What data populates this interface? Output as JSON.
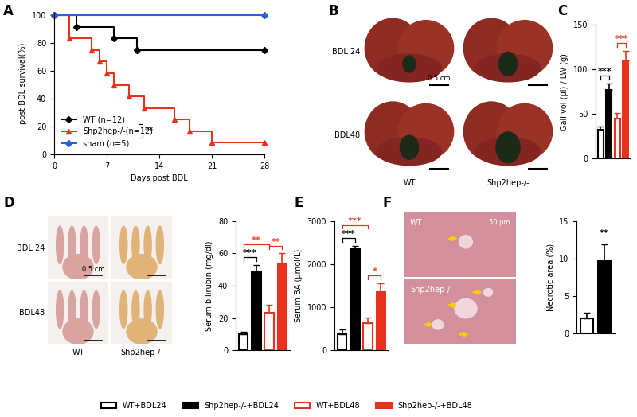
{
  "chart_data": [
    {
      "panel": "A",
      "type": "line",
      "xlabel": "Days post BDL",
      "ylabel": "post BDL survival(%)",
      "xlim": [
        0,
        28
      ],
      "xticks": [
        0,
        7,
        14,
        21,
        28
      ],
      "ylim": [
        0,
        102
      ],
      "yticks": [
        0,
        20,
        40,
        60,
        80,
        100
      ],
      "legend": "lower left",
      "annotations": [
        {
          "text": "**",
          "between": [
            0,
            1
          ]
        }
      ],
      "series": [
        {
          "name": "WT (n=12)",
          "color": "#000000",
          "marker": "D",
          "x": [
            0,
            3,
            8,
            11,
            28
          ],
          "values": [
            100,
            91.7,
            83.3,
            75,
            75
          ]
        },
        {
          "name": "Shp2hep-/-(n=12)",
          "color": "#e8321e",
          "marker": "^",
          "x": [
            0,
            2,
            5,
            6,
            7,
            8,
            10,
            12,
            16,
            18,
            21,
            28
          ],
          "values": [
            100,
            83.3,
            75,
            66.7,
            58.3,
            50,
            41.7,
            33.3,
            25,
            16.7,
            8.3,
            8.3
          ]
        },
        {
          "name": "sham (n=5)",
          "color": "#2b5fd6",
          "marker": "D",
          "x": [
            0,
            28
          ],
          "values": [
            100,
            100
          ]
        }
      ]
    },
    {
      "panel": "C",
      "type": "bar",
      "ylabel": "Gall vol (µl) / LW (g)",
      "categories": [
        null,
        null,
        null,
        null
      ],
      "values": [
        32,
        77,
        45,
        110
      ],
      "errors": [
        4,
        7,
        6,
        11
      ],
      "ylim": [
        0,
        150
      ],
      "yticks": [
        0,
        50,
        100,
        150
      ],
      "tick_labels": "y",
      "annotations": [
        {
          "text": "***",
          "between": [
            0,
            1
          ],
          "color": "#000000"
        },
        {
          "text": "***",
          "between": [
            2,
            3
          ],
          "color": "#e8321e"
        }
      ]
    },
    {
      "panel": "D",
      "type": "bar",
      "ylabel": "Serum bilirubin (mg/dl)",
      "categories": [
        null,
        null,
        null,
        null
      ],
      "values": [
        10,
        49,
        23,
        54
      ],
      "errors": [
        1.5,
        4,
        5,
        6
      ],
      "ylim": [
        0,
        80
      ],
      "yticks": [
        0,
        20,
        40,
        60,
        80
      ],
      "tick_labels": "y",
      "annotations": [
        {
          "text": "***",
          "between": [
            0,
            1
          ],
          "color": "#000000"
        },
        {
          "text": "**",
          "between": [
            0,
            2
          ],
          "color": "#e8321e"
        },
        {
          "text": "**",
          "between": [
            2,
            3
          ],
          "color": "#e8321e"
        }
      ]
    },
    {
      "panel": "E",
      "type": "bar",
      "ylabel": "Serum BA (µmol/L)",
      "categories": [
        null,
        null,
        null,
        null
      ],
      "values": [
        380,
        2350,
        640,
        1360
      ],
      "errors": [
        100,
        80,
        120,
        200
      ],
      "ylim": [
        0,
        3000
      ],
      "yticks": [
        0,
        1000,
        2000,
        3000
      ],
      "tick_labels": "y",
      "annotations": [
        {
          "text": "***",
          "between": [
            0,
            1
          ],
          "color": "#000000"
        },
        {
          "text": "***",
          "between": [
            0,
            2
          ],
          "color": "#e8321e"
        },
        {
          "text": "*",
          "between": [
            2,
            3
          ],
          "color": "#e8321e"
        }
      ]
    },
    {
      "panel": "F",
      "type": "bar",
      "ylabel": "Necrotic area (%)",
      "categories": [
        null,
        null
      ],
      "values": [
        2,
        9.7
      ],
      "errors": [
        0.8,
        2.2
      ],
      "colors": [
        "#ffffff",
        "#000000"
      ],
      "ylim": [
        0,
        15
      ],
      "yticks": [
        0,
        5,
        10,
        15
      ],
      "tick_labels": "y",
      "annotations": [
        {
          "text": "**",
          "between": [
            1,
            1
          ],
          "color": "#000000"
        }
      ]
    }
  ],
  "groups": [
    {
      "name": "WT+BDL24",
      "color": "#000000",
      "marker": "open"
    },
    {
      "name": "Shp2hep-/-+BDL24",
      "color": "#000000",
      "marker": "filled"
    },
    {
      "name": "WT+BDL48",
      "color": "#e8321e",
      "marker": "open"
    },
    {
      "name": "Shp2hep-/-+BDL48",
      "color": "#e8321e",
      "marker": "filled"
    }
  ],
  "images": [
    {
      "panel": "B",
      "rows": [
        "BDL 24",
        "BDL48"
      ],
      "columns": [
        "WT",
        "Shp2hep-/-"
      ],
      "scale_bar": "0.5 cm"
    },
    {
      "panel": "D",
      "rows": [
        "BDL 24",
        "BDL48"
      ],
      "columns": [
        "WT",
        "Shp2hep-/-"
      ],
      "scale_bar": "0.5 cm"
    },
    {
      "panel": "F",
      "labels": [
        "WT",
        "Shp2hep-/-"
      ],
      "scale_bar": "50 µm"
    }
  ]
}
